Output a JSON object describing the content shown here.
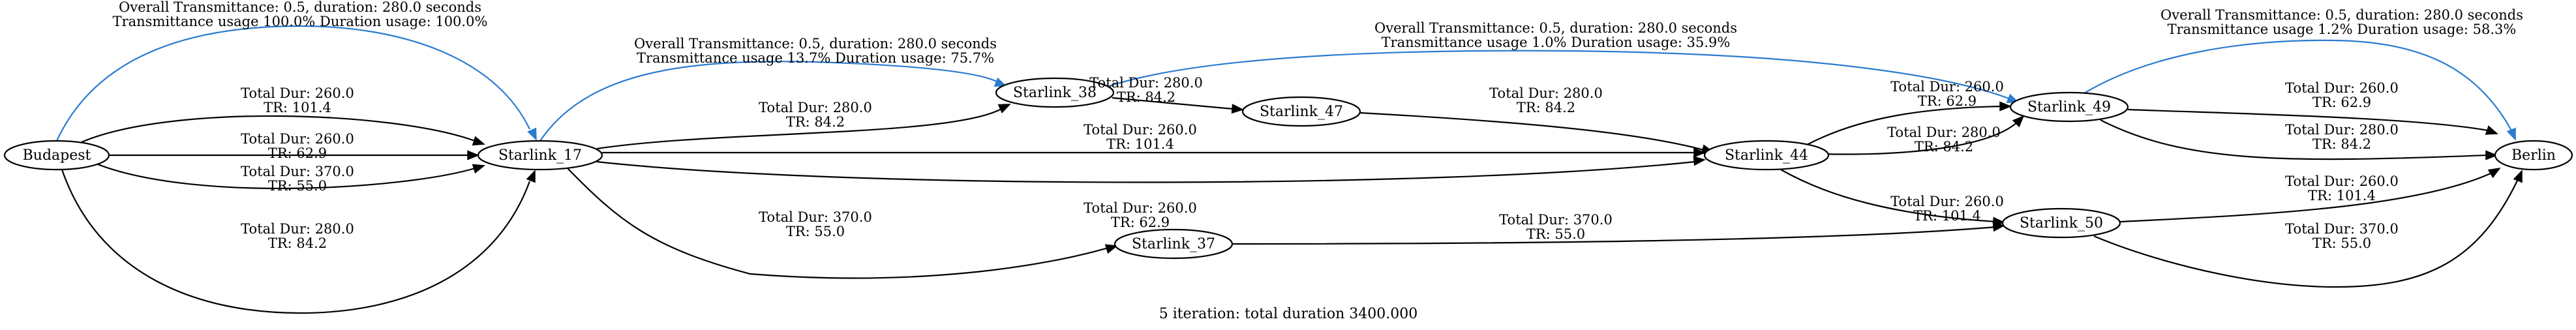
{
  "nodes": [
    {
      "id": "budapest",
      "label": "Budapest"
    },
    {
      "id": "starlink_17",
      "label": "Starlink_17"
    },
    {
      "id": "starlink_38",
      "label": "Starlink_38"
    },
    {
      "id": "starlink_47",
      "label": "Starlink_47"
    },
    {
      "id": "starlink_37",
      "label": "Starlink_37"
    },
    {
      "id": "starlink_44",
      "label": "Starlink_44"
    },
    {
      "id": "starlink_49",
      "label": "Starlink_49"
    },
    {
      "id": "starlink_50",
      "label": "Starlink_50"
    },
    {
      "id": "berlin",
      "label": "Berlin"
    }
  ],
  "edges": [
    {
      "id": "e1",
      "from": "budapest",
      "to": "starlink_17",
      "highlight": true,
      "lines": [
        "Overall Transmittance: 0.5, duration: 280.0 seconds",
        "Transmittance usage 100.0% Duration usage: 100.0%"
      ]
    },
    {
      "id": "e2",
      "from": "budapest",
      "to": "starlink_17",
      "highlight": false,
      "lines": [
        "Total Dur: 260.0",
        "TR: 101.4"
      ]
    },
    {
      "id": "e3",
      "from": "budapest",
      "to": "starlink_17",
      "highlight": false,
      "lines": [
        "Total Dur: 260.0",
        "TR: 62.9"
      ]
    },
    {
      "id": "e4",
      "from": "budapest",
      "to": "starlink_17",
      "highlight": false,
      "lines": [
        "Total Dur: 370.0",
        "TR: 55.0"
      ]
    },
    {
      "id": "e5",
      "from": "budapest",
      "to": "starlink_17",
      "highlight": false,
      "lines": [
        "Total Dur: 280.0",
        "TR: 84.2"
      ]
    },
    {
      "id": "e6",
      "from": "starlink_17",
      "to": "starlink_38",
      "highlight": true,
      "lines": [
        "Overall Transmittance: 0.5, duration: 280.0 seconds",
        "Transmittance usage 13.7% Duration usage: 75.7%"
      ]
    },
    {
      "id": "e7",
      "from": "starlink_17",
      "to": "starlink_38",
      "highlight": false,
      "lines": [
        "Total Dur: 280.0",
        "TR: 84.2"
      ]
    },
    {
      "id": "e8",
      "from": "starlink_17",
      "to": "starlink_44",
      "highlight": false,
      "lines": [
        "Total Dur: 260.0",
        "TR: 101.4"
      ]
    },
    {
      "id": "e9",
      "from": "starlink_17",
      "to": "starlink_44",
      "highlight": false,
      "lines": [
        "Total Dur: 260.0",
        "TR: 62.9"
      ]
    },
    {
      "id": "e10",
      "from": "starlink_17",
      "to": "starlink_37",
      "highlight": false,
      "lines": [
        "Total Dur: 370.0",
        "TR: 55.0"
      ]
    },
    {
      "id": "e11",
      "from": "starlink_38",
      "to": "starlink_49",
      "highlight": true,
      "lines": [
        "Overall Transmittance: 0.5, duration: 280.0 seconds",
        "Transmittance usage 1.0% Duration usage: 35.9%"
      ]
    },
    {
      "id": "e12",
      "from": "starlink_38",
      "to": "starlink_47",
      "highlight": false,
      "lines": [
        "Total Dur: 280.0",
        "TR: 84.2"
      ]
    },
    {
      "id": "e13",
      "from": "starlink_47",
      "to": "starlink_44",
      "highlight": false,
      "lines": [
        "Total Dur: 280.0",
        "TR: 84.2"
      ]
    },
    {
      "id": "e14",
      "from": "starlink_37",
      "to": "starlink_50",
      "highlight": false,
      "lines": [
        "Total Dur: 370.0",
        "TR: 55.0"
      ]
    },
    {
      "id": "e15",
      "from": "starlink_44",
      "to": "starlink_49",
      "highlight": false,
      "lines": [
        "Total Dur: 260.0",
        "TR: 62.9"
      ]
    },
    {
      "id": "e16",
      "from": "starlink_44",
      "to": "starlink_49",
      "highlight": false,
      "lines": [
        "Total Dur: 280.0",
        "TR: 84.2"
      ]
    },
    {
      "id": "e17",
      "from": "starlink_44",
      "to": "starlink_50",
      "highlight": false,
      "lines": [
        "Total Dur: 260.0",
        "TR: 101.4"
      ]
    },
    {
      "id": "e18",
      "from": "starlink_49",
      "to": "berlin",
      "highlight": true,
      "lines": [
        "Overall Transmittance: 0.5, duration: 280.0 seconds",
        "Transmittance usage 1.2% Duration usage: 58.3%"
      ]
    },
    {
      "id": "e19",
      "from": "starlink_49",
      "to": "berlin",
      "highlight": false,
      "lines": [
        "Total Dur: 260.0",
        "TR: 62.9"
      ]
    },
    {
      "id": "e20",
      "from": "starlink_49",
      "to": "berlin",
      "highlight": false,
      "lines": [
        "Total Dur: 280.0",
        "TR: 84.2"
      ]
    },
    {
      "id": "e21",
      "from": "starlink_50",
      "to": "berlin",
      "highlight": false,
      "lines": [
        "Total Dur: 260.0",
        "TR: 101.4"
      ]
    },
    {
      "id": "e22",
      "from": "starlink_50",
      "to": "berlin",
      "highlight": false,
      "lines": [
        "Total Dur: 370.0",
        "TR: 55.0"
      ]
    }
  ],
  "caption": "5 iteration: total duration 3400.000",
  "colors": {
    "highlight": "#2b7bd0",
    "default": "#000000"
  }
}
